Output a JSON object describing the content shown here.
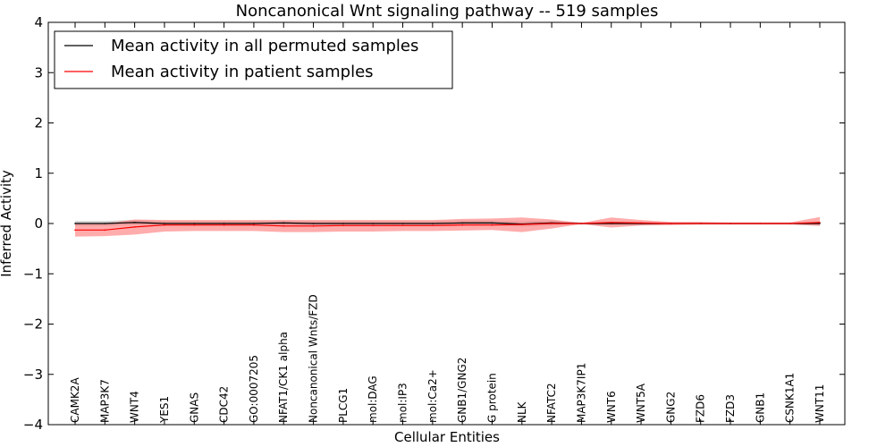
{
  "chart_data": {
    "type": "line",
    "title": "Noncanonical Wnt signaling pathway -- 519 samples",
    "xlabel": "Cellular Entities",
    "ylabel": "Inferred Activity",
    "ylim": [
      -4,
      4
    ],
    "yticks": [
      -4,
      -3,
      -2,
      -1,
      0,
      1,
      2,
      3,
      4
    ],
    "ytick_labels": [
      "−4",
      "−3",
      "−2",
      "−1",
      "0",
      "1",
      "2",
      "3",
      "4"
    ],
    "legend_position": "top-left",
    "categories": [
      "CAMK2A",
      "MAP3K7",
      "WNT4",
      "YES1",
      "GNAS",
      "CDC42",
      "GO:0007205",
      "NFAT1/CK1 alpha",
      "Noncanonical Wnts/FZD",
      "PLCG1",
      "mol:DAG",
      "mol:IP3",
      "mol:Ca2+",
      "GNB1/GNG2",
      "G protein",
      "NLK",
      "NFATC2",
      "MAP3K7IP1",
      "WNT6",
      "WNT5A",
      "GNG2",
      "FZD6",
      "FZD3",
      "GNB1",
      "CSNK1A1",
      "WNT11"
    ],
    "series": [
      {
        "name": "Mean activity in all permuted samples",
        "color": "#000000",
        "band_color": "#b3b3b3",
        "values": [
          0.0,
          0.0,
          0.02,
          0.0,
          0.0,
          0.0,
          0.0,
          0.01,
          0.0,
          0.0,
          0.0,
          0.0,
          0.0,
          0.01,
          0.01,
          -0.01,
          0.01,
          0.0,
          0.0,
          0.0,
          0.0,
          0.0,
          0.0,
          0.0,
          0.0,
          0.0
        ],
        "band_lower": [
          -0.05,
          -0.05,
          -0.03,
          -0.05,
          -0.05,
          -0.05,
          -0.05,
          -0.04,
          -0.05,
          -0.05,
          -0.05,
          -0.05,
          -0.05,
          -0.04,
          -0.04,
          -0.06,
          -0.04,
          -0.02,
          -0.03,
          -0.03,
          -0.02,
          -0.02,
          -0.02,
          -0.02,
          -0.02,
          -0.03
        ],
        "band_upper": [
          0.05,
          0.05,
          0.07,
          0.05,
          0.05,
          0.05,
          0.05,
          0.06,
          0.05,
          0.05,
          0.05,
          0.05,
          0.05,
          0.06,
          0.06,
          0.04,
          0.06,
          0.02,
          0.03,
          0.03,
          0.02,
          0.02,
          0.02,
          0.02,
          0.02,
          0.03
        ]
      },
      {
        "name": "Mean activity in patient samples",
        "color": "#ff0000",
        "band_color": "#ff8080",
        "values": [
          -0.13,
          -0.13,
          -0.07,
          -0.03,
          -0.03,
          -0.03,
          -0.03,
          -0.05,
          -0.05,
          -0.04,
          -0.04,
          -0.04,
          -0.04,
          -0.03,
          -0.03,
          -0.02,
          0.0,
          0.0,
          0.02,
          0.01,
          0.0,
          0.0,
          0.0,
          0.0,
          0.0,
          0.02
        ],
        "band_lower": [
          -0.26,
          -0.25,
          -0.22,
          -0.16,
          -0.15,
          -0.15,
          -0.15,
          -0.17,
          -0.17,
          -0.16,
          -0.16,
          -0.15,
          -0.15,
          -0.14,
          -0.13,
          -0.17,
          -0.1,
          -0.01,
          -0.08,
          -0.04,
          -0.03,
          -0.02,
          -0.02,
          -0.02,
          -0.02,
          -0.05
        ],
        "band_upper": [
          0.0,
          0.0,
          0.08,
          0.07,
          0.07,
          0.07,
          0.07,
          0.07,
          0.07,
          0.07,
          0.07,
          0.07,
          0.07,
          0.09,
          0.1,
          0.12,
          0.08,
          0.01,
          0.12,
          0.07,
          0.03,
          0.03,
          0.02,
          0.02,
          0.02,
          0.13
        ]
      }
    ]
  }
}
